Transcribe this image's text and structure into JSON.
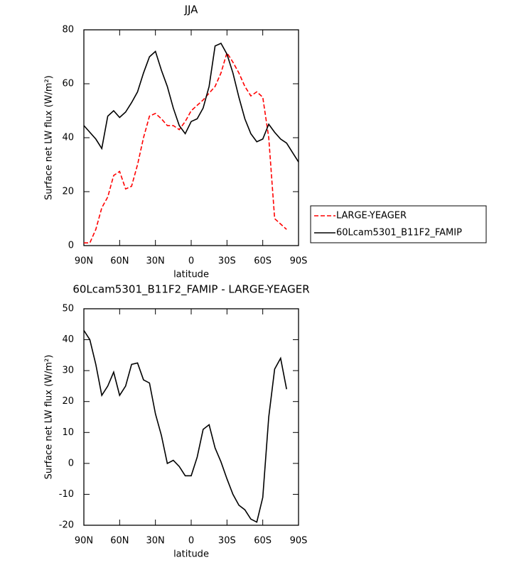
{
  "chart_data": [
    {
      "type": "line",
      "title": "JJA",
      "xlabel": "latitude",
      "ylabel": "Surface net LW flux (W/m²)",
      "legend": "outside-right",
      "x": [
        90,
        85,
        80,
        75,
        70,
        65,
        60,
        55,
        50,
        45,
        40,
        35,
        30,
        25,
        20,
        15,
        10,
        5,
        0,
        -5,
        -10,
        -15,
        -20,
        -25,
        -30,
        -35,
        -40,
        -45,
        -50,
        -55,
        -60,
        -65,
        -70,
        -75,
        -80,
        -85,
        -90
      ],
      "xlim": [
        90,
        -90
      ],
      "xticks": [
        {
          "value": 90,
          "label": "90N"
        },
        {
          "value": 60,
          "label": "60N"
        },
        {
          "value": 30,
          "label": "30N"
        },
        0,
        {
          "value": -30,
          "label": "30S"
        },
        {
          "value": -60,
          "label": "60S"
        },
        {
          "value": -90,
          "label": "90S"
        }
      ],
      "ylim": [
        0,
        80
      ],
      "yticks": [
        0,
        20,
        40,
        60,
        80
      ],
      "series": [
        {
          "name": "LARGE-YEAGER",
          "color": "#ff0000",
          "line_style": "dashed",
          "values": [
            1,
            1,
            6,
            14,
            18,
            26,
            27.5,
            21,
            22,
            30,
            40,
            48,
            49,
            47,
            44.5,
            44.5,
            43,
            46,
            50,
            52,
            54,
            56.5,
            59,
            64,
            71.5,
            68,
            64,
            59,
            55.5,
            57,
            55,
            40,
            10,
            8,
            6,
            null,
            null
          ]
        },
        {
          "name": "60Lcam5301_B11F2_FAMIP",
          "color": "#000000",
          "line_style": "solid",
          "values": [
            44.5,
            42,
            39.5,
            36,
            48,
            50,
            47.5,
            49.5,
            53,
            57,
            64,
            70,
            72,
            65,
            59,
            51,
            44.5,
            41.5,
            46,
            47,
            51,
            59,
            74,
            75,
            71,
            64,
            55,
            47,
            41.5,
            38.5,
            39.5,
            45,
            42,
            39.5,
            38,
            34.5,
            31
          ]
        }
      ]
    },
    {
      "type": "line",
      "title": "60Lcam5301_B11F2_FAMIP - LARGE-YEAGER",
      "xlabel": "latitude",
      "ylabel": "Surface net LW flux (W/m²)",
      "x": [
        90,
        85,
        80,
        75,
        70,
        65,
        60,
        55,
        50,
        45,
        40,
        35,
        30,
        25,
        20,
        15,
        10,
        5,
        0,
        -5,
        -10,
        -15,
        -20,
        -25,
        -30,
        -35,
        -40,
        -45,
        -50,
        -55,
        -60,
        -65,
        -70,
        -75,
        -80,
        -85,
        -90
      ],
      "xlim": [
        90,
        -90
      ],
      "xticks": [
        {
          "value": 90,
          "label": "90N"
        },
        {
          "value": 60,
          "label": "60N"
        },
        {
          "value": 30,
          "label": "30N"
        },
        0,
        {
          "value": -30,
          "label": "30S"
        },
        {
          "value": -60,
          "label": "60S"
        },
        {
          "value": -90,
          "label": "90S"
        }
      ],
      "ylim": [
        -20,
        50
      ],
      "yticks": [
        -20,
        -10,
        0,
        10,
        20,
        30,
        40,
        50
      ],
      "series": [
        {
          "color": "#000000",
          "line_style": "solid",
          "values": [
            43,
            40,
            32,
            22,
            25,
            29.5,
            22,
            25,
            32,
            32.5,
            27,
            26,
            16,
            9,
            0,
            1,
            -1,
            -4,
            -4,
            2,
            11,
            12.5,
            5,
            0.5,
            -5,
            -10,
            -13.5,
            -15,
            -18,
            -19,
            -11,
            15,
            30.5,
            34,
            24,
            null,
            null
          ]
        }
      ]
    }
  ]
}
